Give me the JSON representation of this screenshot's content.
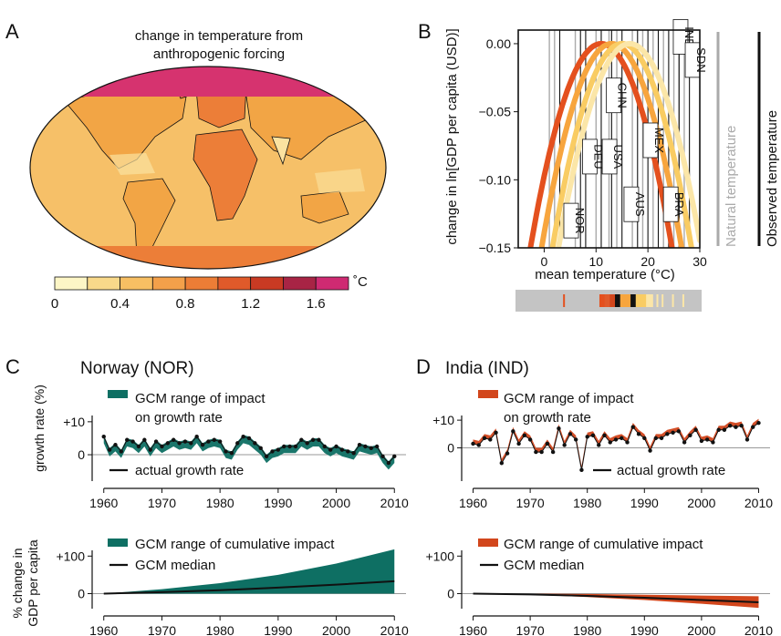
{
  "panels": {
    "a": {
      "letter": "A",
      "title_line1": "change in temperature from",
      "title_line2": "anthropogenic forcing"
    },
    "b": {
      "letter": "B"
    },
    "c": {
      "letter": "C",
      "title": "Norway (NOR)"
    },
    "d": {
      "letter": "D",
      "title": "India (IND)"
    }
  },
  "colorbar": {
    "unit": "˚C",
    "tick_labels": [
      "0",
      "0.4",
      "0.8",
      "1.2",
      "1.6"
    ],
    "colors": [
      "#fdf6c6",
      "#f9d98a",
      "#f7bf63",
      "#f3a04a",
      "#ec7d36",
      "#e05a2a",
      "#c93a23",
      "#a82445",
      "#cf2a72"
    ]
  },
  "map_colors": {
    "ocean": "#f6c068",
    "land": "#f2a545",
    "warm": "#ec7e38",
    "pale": "#fbe2a0",
    "arctic": "#d6336f"
  },
  "legend_b": {
    "natural": "Natural temperature",
    "observed": "Observed temperature"
  },
  "legend_c": {
    "top_range_line1": "GCM range of impact",
    "top_range_line2": "on growth rate",
    "top_actual": "actual growth rate",
    "bottom_range": "GCM range of cumulative impact",
    "bottom_median": "GCM median",
    "ylabel_top": "growth rate (%)",
    "ylabel_bottom_line1": "% change in",
    "ylabel_bottom_line2": "GDP per capita"
  },
  "legend_d": {
    "top_range_line1": "GCM range of impact",
    "top_range_line2": "on growth rate",
    "top_actual": "actual growth rate",
    "bottom_range": "GCM range of cumulative impact",
    "bottom_median": "GCM median"
  },
  "colors": {
    "teal": "#0e6f63",
    "orange_red": "#d2461c",
    "gray": "#aaaaaa"
  },
  "chart_data": [
    {
      "type": "line",
      "panel": "B",
      "xlabel": "mean temperature (°C)",
      "ylabel": "change in ln[GDP per capita (USD)]",
      "xlim": [
        -5,
        30
      ],
      "ylim": [
        -0.15,
        0.01
      ],
      "xticks": [
        0,
        10,
        20,
        30
      ],
      "yticks": [
        0.0,
        -0.05,
        -0.1,
        -0.15
      ],
      "xtick_labels": [
        "0",
        "10",
        "20",
        "30"
      ],
      "ytick_labels": [
        "0.00",
        "−0.05",
        "−0.10",
        "−0.15"
      ],
      "series": [
        {
          "peak_x": 11.0,
          "width": 27.3,
          "color": "#e4501e"
        },
        {
          "peak_x": 13.0,
          "width": 27.0,
          "color": "#f7a53e"
        },
        {
          "peak_x": 15.0,
          "width": 26.8,
          "color": "#f9cc63"
        },
        {
          "peak_x": 16.5,
          "width": 27.5,
          "color": "#fbe6a8"
        }
      ],
      "natural_temperature_lines": [
        1,
        2,
        6,
        10,
        12.5,
        14,
        17,
        19,
        21,
        23,
        25,
        26,
        27
      ],
      "observed_temperature_lines": [
        3,
        7,
        8,
        11,
        13,
        15,
        18,
        20,
        22,
        24,
        26,
        28
      ],
      "countries": [
        {
          "code": "IND",
          "x": 26.3,
          "y": 0.005
        },
        {
          "code": "SDN",
          "x": 28.6,
          "y": -0.012
        },
        {
          "code": "CHN",
          "x": 13.4,
          "y": -0.038
        },
        {
          "code": "DEU",
          "x": 8.8,
          "y": -0.083
        },
        {
          "code": "USA",
          "x": 12.6,
          "y": -0.083
        },
        {
          "code": "MEX",
          "x": 20.5,
          "y": -0.071
        },
        {
          "code": "NOR",
          "x": 5.2,
          "y": -0.13
        },
        {
          "code": "AUS",
          "x": 16.8,
          "y": -0.118
        },
        {
          "code": "BRA",
          "x": 24.4,
          "y": -0.118
        }
      ]
    },
    {
      "type": "line",
      "panel": "C-top",
      "xticks": [
        1960,
        1970,
        1980,
        1990,
        2000,
        2010
      ],
      "ytick_labels": [
        "+10",
        "0"
      ],
      "yticks": [
        10,
        0
      ],
      "xlim": [
        1958,
        2012
      ],
      "ylim": [
        -8,
        13
      ],
      "x": [
        1960,
        1961,
        1962,
        1963,
        1964,
        1965,
        1966,
        1967,
        1968,
        1969,
        1970,
        1971,
        1972,
        1973,
        1974,
        1975,
        1976,
        1977,
        1978,
        1979,
        1980,
        1981,
        1982,
        1983,
        1984,
        1985,
        1986,
        1987,
        1988,
        1989,
        1990,
        1991,
        1992,
        1993,
        1994,
        1995,
        1996,
        1997,
        1998,
        1999,
        2000,
        2001,
        2002,
        2003,
        2004,
        2005,
        2006,
        2007,
        2008,
        2009,
        2010
      ],
      "actual": [
        5.5,
        1.5,
        3,
        1,
        4.5,
        4,
        2.5,
        4.5,
        1.5,
        4,
        2.5,
        3.5,
        4.5,
        3.5,
        4,
        3.5,
        5.5,
        3,
        4,
        4.5,
        4,
        1,
        0.5,
        3.5,
        5.5,
        5,
        3.5,
        2,
        -0.5,
        1,
        1.5,
        2.5,
        2.5,
        2.5,
        4.5,
        3.5,
        4.5,
        4.5,
        2.5,
        1.5,
        2.5,
        1.5,
        1,
        0.5,
        3,
        2.5,
        2,
        2.5,
        -0.5,
        -2.5,
        -0.5
      ],
      "range_offset": [
        -2,
        0.5
      ]
    },
    {
      "type": "area",
      "panel": "C-bottom",
      "xticks": [
        1960,
        1970,
        1980,
        1990,
        2000,
        2010
      ],
      "ytick_labels": [
        "+100",
        "0"
      ],
      "yticks": [
        100,
        0
      ],
      "xlim": [
        1958,
        2012
      ],
      "ylim": [
        -40,
        125
      ],
      "x": [
        1960,
        1970,
        1980,
        1990,
        2000,
        2010
      ],
      "median": [
        0,
        4,
        9,
        16,
        24,
        33
      ],
      "upper": [
        0,
        12,
        28,
        50,
        80,
        118
      ],
      "lower": [
        0,
        0,
        0,
        0,
        0,
        0
      ]
    },
    {
      "type": "line",
      "panel": "D-top",
      "xticks": [
        1960,
        1970,
        1980,
        1990,
        2000,
        2010
      ],
      "ytick_labels": [
        "+10",
        "0"
      ],
      "yticks": [
        10,
        0
      ],
      "xlim": [
        1958,
        2012
      ],
      "ylim": [
        -12,
        13
      ],
      "x": [
        1960,
        1961,
        1962,
        1963,
        1964,
        1965,
        1966,
        1967,
        1968,
        1969,
        1970,
        1971,
        1972,
        1973,
        1974,
        1975,
        1976,
        1977,
        1978,
        1979,
        1980,
        1981,
        1982,
        1983,
        1984,
        1985,
        1986,
        1987,
        1988,
        1989,
        1990,
        1991,
        1992,
        1993,
        1994,
        1995,
        1996,
        1997,
        1998,
        1999,
        2000,
        2001,
        2002,
        2003,
        2004,
        2005,
        2006,
        2007,
        2008,
        2009,
        2010
      ],
      "actual": [
        1.5,
        1,
        3.5,
        3,
        5.5,
        -5.5,
        -2,
        6,
        1.5,
        4.5,
        3,
        -1.5,
        -1.5,
        1.5,
        -1.5,
        7,
        1,
        5,
        3,
        -8,
        4,
        4.5,
        1,
        4.5,
        2,
        3,
        3.5,
        2,
        7.5,
        5,
        3.5,
        -1,
        3.5,
        3.5,
        5,
        5.5,
        6,
        2,
        4.5,
        6.5,
        2.5,
        3,
        2,
        6.5,
        6.5,
        8,
        7.5,
        8,
        3,
        7.5,
        9
      ],
      "range_offset": [
        0,
        1.5
      ]
    },
    {
      "type": "area",
      "panel": "D-bottom",
      "xticks": [
        1960,
        1970,
        1980,
        1990,
        2000,
        2010
      ],
      "ytick_labels": [
        "+100",
        "0"
      ],
      "yticks": [
        100,
        0
      ],
      "xlim": [
        1958,
        2012
      ],
      "ylim": [
        -40,
        125
      ],
      "x": [
        1960,
        1970,
        1980,
        1990,
        2000,
        2010
      ],
      "median": [
        0,
        -2,
        -6,
        -11,
        -17,
        -23
      ],
      "upper": [
        0,
        0,
        -1,
        -3,
        -5,
        -7
      ],
      "lower": [
        0,
        -3,
        -9,
        -17,
        -27,
        -38
      ]
    }
  ],
  "tick_labels": {
    "c_top_x": [
      "1960",
      "1970",
      "1980",
      "1990",
      "2000",
      "2010"
    ],
    "c_bottom_x": [
      "1960",
      "1970",
      "1980",
      "1990",
      "2000",
      "2010"
    ],
    "d_top_x": [
      "1960",
      "1970",
      "1980",
      "1990",
      "2000",
      "2010"
    ],
    "d_bottom_x": [
      "1960",
      "1970",
      "1980",
      "1990",
      "2000",
      "2010"
    ]
  }
}
